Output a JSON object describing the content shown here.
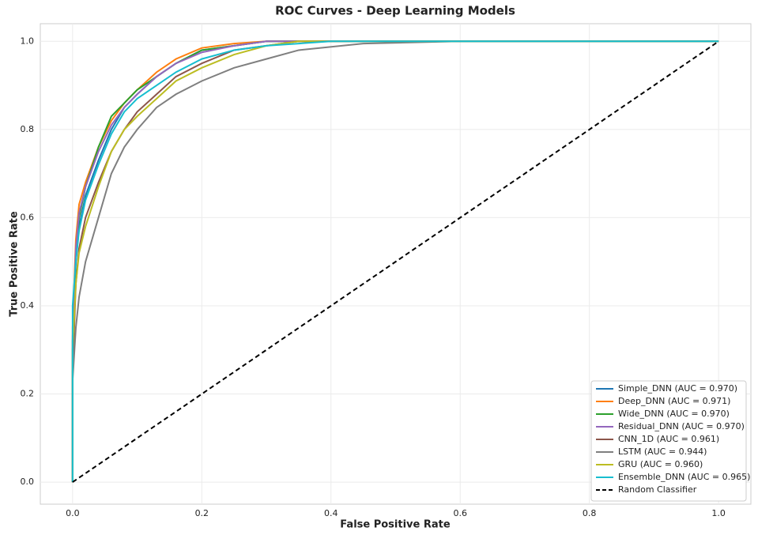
{
  "chart_data": {
    "type": "line",
    "title": "ROC Curves - Deep Learning Models",
    "x_label": "False Positive Rate",
    "y_label": "True Positive Rate",
    "xlim": [
      -0.05,
      1.05
    ],
    "ylim": [
      -0.05,
      1.04
    ],
    "xticks": [
      {
        "value": 0,
        "label": "0.0"
      },
      0.2,
      0.4,
      0.6,
      0.8,
      {
        "value": 1,
        "label": "1.0"
      }
    ],
    "yticks": [
      {
        "value": 0,
        "label": "0.0"
      },
      0.2,
      0.4,
      0.6,
      0.8,
      {
        "value": 1,
        "label": "1.0"
      }
    ],
    "grid": true,
    "legend": "lower right",
    "series": [
      {
        "name": "Simple_DNN (AUC = 0.970)",
        "color": "#1f77b4",
        "style": "solid",
        "x": [
          0,
          0,
          0.005,
          0.01,
          0.02,
          0.04,
          0.06,
          0.08,
          0.1,
          0.13,
          0.16,
          0.2,
          0.25,
          0.3,
          1
        ],
        "values": [
          0,
          0.3,
          0.5,
          0.58,
          0.65,
          0.73,
          0.8,
          0.85,
          0.88,
          0.92,
          0.95,
          0.98,
          0.99,
          1,
          1
        ]
      },
      {
        "name": "Deep_DNN (AUC = 0.971)",
        "color": "#ff7f0e",
        "style": "solid",
        "x": [
          0,
          0,
          0.005,
          0.01,
          0.02,
          0.04,
          0.06,
          0.08,
          0.1,
          0.13,
          0.16,
          0.2,
          0.25,
          0.3,
          1
        ],
        "values": [
          0,
          0.35,
          0.55,
          0.63,
          0.68,
          0.76,
          0.82,
          0.86,
          0.89,
          0.93,
          0.96,
          0.985,
          0.995,
          1,
          1
        ]
      },
      {
        "name": "Wide_DNN (AUC = 0.970)",
        "color": "#2ca02c",
        "style": "solid",
        "x": [
          0,
          0,
          0.005,
          0.01,
          0.02,
          0.04,
          0.06,
          0.08,
          0.1,
          0.13,
          0.16,
          0.2,
          0.25,
          0.3,
          1
        ],
        "values": [
          0,
          0.32,
          0.52,
          0.6,
          0.67,
          0.76,
          0.83,
          0.86,
          0.89,
          0.92,
          0.95,
          0.98,
          0.99,
          1,
          1
        ]
      },
      {
        "name": "Residual_DNN (AUC = 0.970)",
        "color": "#9467bd",
        "style": "solid",
        "x": [
          0,
          0,
          0.005,
          0.01,
          0.02,
          0.04,
          0.06,
          0.08,
          0.1,
          0.13,
          0.16,
          0.2,
          0.25,
          0.3,
          1
        ],
        "values": [
          0,
          0.33,
          0.53,
          0.61,
          0.67,
          0.75,
          0.81,
          0.85,
          0.88,
          0.92,
          0.95,
          0.975,
          0.99,
          1,
          1
        ]
      },
      {
        "name": "CNN_1D (AUC = 0.961)",
        "color": "#8c564b",
        "style": "solid",
        "x": [
          0,
          0,
          0.005,
          0.01,
          0.02,
          0.04,
          0.06,
          0.08,
          0.1,
          0.13,
          0.16,
          0.2,
          0.25,
          0.3,
          0.35,
          1
        ],
        "values": [
          0,
          0.25,
          0.45,
          0.53,
          0.6,
          0.68,
          0.75,
          0.8,
          0.84,
          0.88,
          0.92,
          0.95,
          0.98,
          0.99,
          1,
          1
        ]
      },
      {
        "name": "LSTM (AUC = 0.944)",
        "color": "#7f7f7f",
        "style": "solid",
        "x": [
          0,
          0,
          0.005,
          0.01,
          0.02,
          0.04,
          0.06,
          0.08,
          0.1,
          0.13,
          0.16,
          0.2,
          0.25,
          0.3,
          0.35,
          0.45,
          0.6,
          1
        ],
        "values": [
          0,
          0.23,
          0.35,
          0.42,
          0.5,
          0.6,
          0.7,
          0.76,
          0.8,
          0.85,
          0.88,
          0.91,
          0.94,
          0.96,
          0.98,
          0.995,
          1,
          1
        ]
      },
      {
        "name": "GRU (AUC = 0.960)",
        "color": "#bcbd22",
        "style": "solid",
        "x": [
          0,
          0,
          0.005,
          0.01,
          0.02,
          0.04,
          0.06,
          0.08,
          0.1,
          0.13,
          0.16,
          0.2,
          0.25,
          0.3,
          0.35,
          1
        ],
        "values": [
          0,
          0.3,
          0.45,
          0.52,
          0.58,
          0.67,
          0.75,
          0.8,
          0.83,
          0.87,
          0.91,
          0.94,
          0.97,
          0.99,
          1,
          1
        ]
      },
      {
        "name": "Ensemble_DNN (AUC = 0.965)",
        "color": "#17becf",
        "style": "solid",
        "x": [
          0,
          0,
          0.005,
          0.01,
          0.02,
          0.04,
          0.06,
          0.08,
          0.1,
          0.13,
          0.16,
          0.2,
          0.25,
          0.3,
          0.4,
          1
        ],
        "values": [
          0,
          0.4,
          0.5,
          0.57,
          0.64,
          0.72,
          0.79,
          0.84,
          0.87,
          0.9,
          0.93,
          0.96,
          0.98,
          0.99,
          1,
          1
        ]
      },
      {
        "name": "Random Classifier",
        "color": "#000000",
        "style": "dashed",
        "x": [
          0,
          1
        ],
        "values": [
          0,
          1
        ]
      }
    ]
  }
}
